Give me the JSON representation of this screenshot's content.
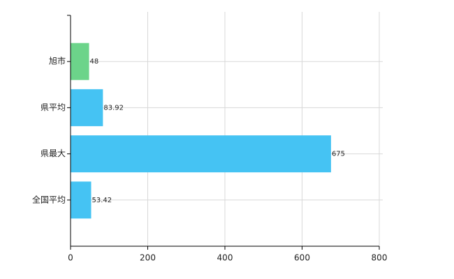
{
  "chart_data": {
    "type": "barh",
    "categories": [
      "旭市",
      "県平均",
      "県最大",
      "全国平均"
    ],
    "values": [
      48,
      83.92,
      675,
      53.42
    ],
    "colors": [
      "#6cd48a",
      "#45c3f3",
      "#45c3f3",
      "#45c3f3"
    ],
    "xlim": [
      0,
      800
    ],
    "xticks": [
      0,
      200,
      400,
      600,
      800
    ],
    "grid": true
  }
}
